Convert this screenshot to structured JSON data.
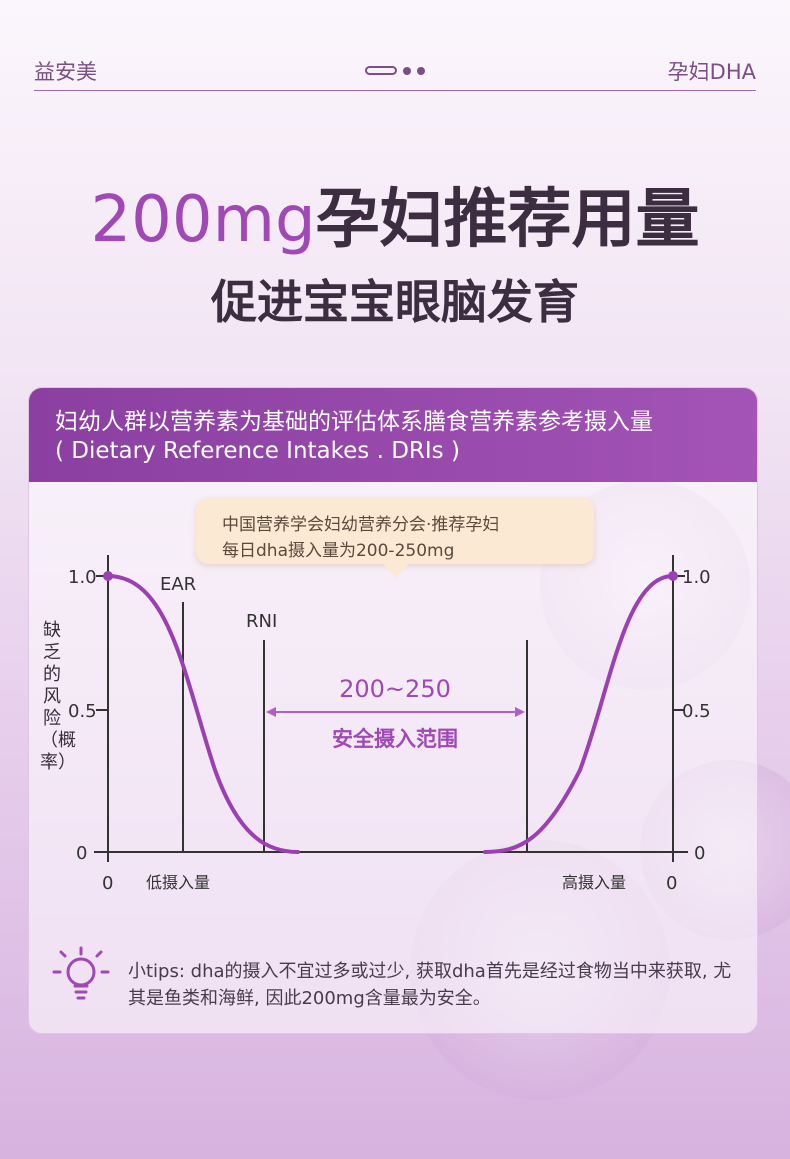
{
  "header": {
    "brand": "益安美",
    "product": "孕妇DHA"
  },
  "hero": {
    "title_accent": "200mg",
    "title_rest": "孕妇推荐用量",
    "subtitle": "促进宝宝眼脑发育"
  },
  "card": {
    "heading_line1": "妇幼人群以营养素为基础的评估体系膳食营养素参考摄入量",
    "heading_line2": "( Dietary Reference Intakes . DRIs )"
  },
  "callout": {
    "line1": "中国营养学会妇幼营养分会·推荐孕妇",
    "line2": "每日dha摄入量为200-250mg"
  },
  "chart_data": {
    "type": "line",
    "ylabel": "缺乏的风险（概率）",
    "y_ticks": [
      "1.0",
      "0.5",
      "0"
    ],
    "y_ticks_right": [
      "1.0",
      "0.5",
      "0"
    ],
    "x_left_label": "0",
    "x_right_label": "0",
    "x_left_caption": "低摄入量",
    "x_right_caption": "高摄入量",
    "markers": [
      "EAR",
      "RNI"
    ],
    "range_value": "200~250",
    "range_label": "安全摄入范围",
    "line_color": "#9b3fb2"
  },
  "tips": {
    "text": "小tips: dha的摄入不宜过多或过少, 获取dha首先是经过食物当中来获取, 尤其是鱼类和海鲜, 因此200mg含量最为安全。"
  },
  "colors": {
    "accent": "#a048b6",
    "header_bar": "#8a3fa1",
    "bubble": "#fbe9d3"
  }
}
